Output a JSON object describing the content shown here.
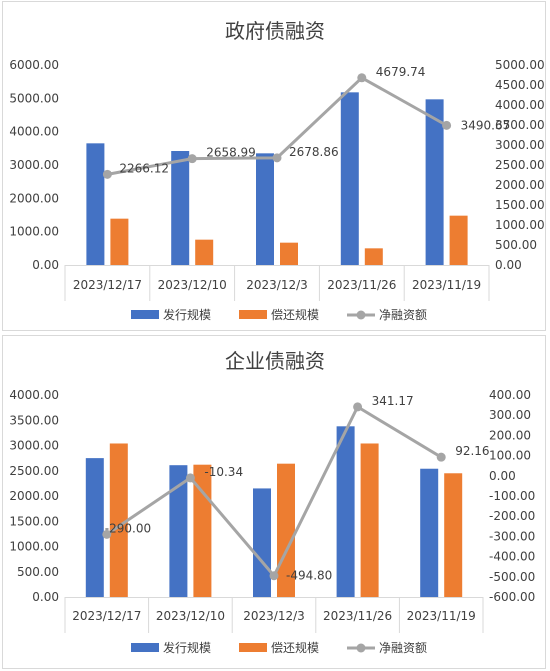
{
  "chart_data": [
    {
      "type": "bar",
      "title": "政府债融资",
      "categories": [
        "2023/12/17",
        "2023/12/10",
        "2023/12/3",
        "2023/11/26",
        "2023/11/19"
      ],
      "series": [
        {
          "name": "发行规模",
          "kind": "bar",
          "axis": "left",
          "color": "#4472c4",
          "values": [
            3650,
            3420,
            3350,
            5180,
            4970
          ]
        },
        {
          "name": "偿还规模",
          "kind": "bar",
          "axis": "left",
          "color": "#ed7d31",
          "values": [
            1390,
            760,
            670,
            500,
            1480
          ]
        },
        {
          "name": "净融资额",
          "kind": "line",
          "axis": "right",
          "color": "#a5a5a5",
          "values": [
            2266.12,
            2658.99,
            2678.86,
            4679.74,
            3490.67
          ],
          "labels": [
            "2266.12",
            "2658.99",
            "2678.86",
            "4679.74",
            "3490.67"
          ]
        }
      ],
      "y_left": {
        "min": 0,
        "max": 6000,
        "step": 1000,
        "ticks": [
          "0.00",
          "1000.00",
          "2000.00",
          "3000.00",
          "4000.00",
          "5000.00",
          "6000.00"
        ]
      },
      "y_right": {
        "min": 0,
        "max": 5000,
        "step": 500,
        "ticks": [
          "0.00",
          "500.00",
          "1000.00",
          "1500.00",
          "2000.00",
          "2500.00",
          "3000.00",
          "3500.00",
          "4000.00",
          "4500.00",
          "5000.00"
        ]
      },
      "grid": false,
      "legend": "bottom"
    },
    {
      "type": "bar",
      "title": "企业债融资",
      "categories": [
        "2023/12/17",
        "2023/12/10",
        "2023/12/3",
        "2023/11/26",
        "2023/11/19"
      ],
      "series": [
        {
          "name": "发行规模",
          "kind": "bar",
          "axis": "left",
          "color": "#4472c4",
          "values": [
            2750,
            2610,
            2150,
            3380,
            2540
          ]
        },
        {
          "name": "偿还规模",
          "kind": "bar",
          "axis": "left",
          "color": "#ed7d31",
          "values": [
            3040,
            2620,
            2640,
            3040,
            2450
          ]
        },
        {
          "name": "净融资额",
          "kind": "line",
          "axis": "right",
          "color": "#a5a5a5",
          "values": [
            -290.0,
            -10.34,
            -494.8,
            341.17,
            92.16
          ],
          "labels": [
            "-290.00",
            "-10.34",
            "-494.80",
            "341.17",
            "92.16"
          ]
        }
      ],
      "y_left": {
        "min": 0,
        "max": 4000,
        "step": 500,
        "ticks": [
          "0.00",
          "500.00",
          "1000.00",
          "1500.00",
          "2000.00",
          "2500.00",
          "3000.00",
          "3500.00",
          "4000.00"
        ]
      },
      "y_right": {
        "min": -600,
        "max": 400,
        "step": 100,
        "ticks": [
          "-600.00",
          "-500.00",
          "-400.00",
          "-300.00",
          "-200.00",
          "-100.00",
          "0.00",
          "100.00",
          "200.00",
          "300.00",
          "400.00"
        ]
      },
      "grid": false,
      "legend": "bottom"
    }
  ]
}
